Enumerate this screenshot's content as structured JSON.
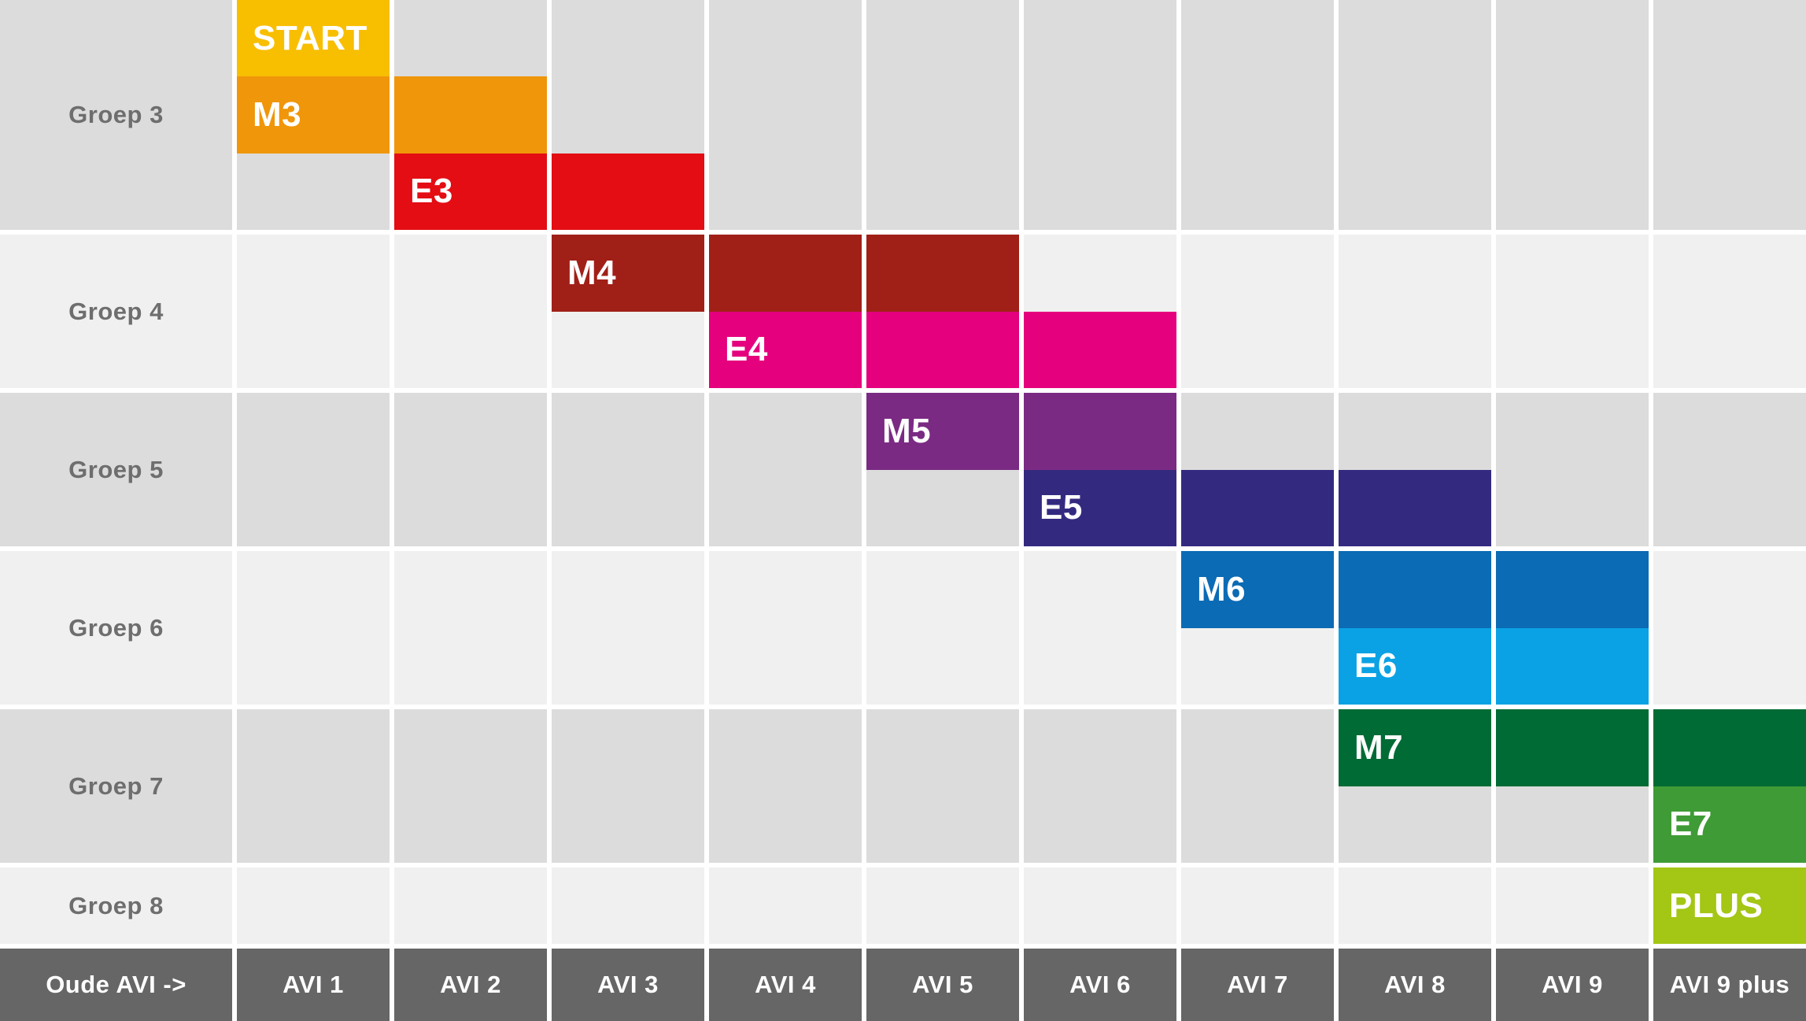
{
  "chart_data": {
    "type": "table",
    "description": "AVI reading levels per school group (gantt-style matrix). Colored blocks show which old AVI levels correspond to each new level per group.",
    "columns": [
      "Oude AVI ->",
      "AVI 1",
      "AVI 2",
      "AVI 3",
      "AVI 4",
      "AVI 5",
      "AVI 6",
      "AVI 7",
      "AVI 8",
      "AVI 9",
      "AVI 9 plus"
    ],
    "groups": [
      {
        "label": "Groep 3",
        "subrows": 3,
        "shade": "dark"
      },
      {
        "label": "Groep 4",
        "subrows": 2,
        "shade": "light"
      },
      {
        "label": "Groep 5",
        "subrows": 2,
        "shade": "dark"
      },
      {
        "label": "Groep 6",
        "subrows": 2,
        "shade": "light"
      },
      {
        "label": "Groep 7",
        "subrows": 2,
        "shade": "dark"
      },
      {
        "label": "Groep 8",
        "subrows": 1,
        "shade": "light"
      }
    ],
    "blocks": [
      {
        "label": "START",
        "group": 0,
        "subrow": 0,
        "col_start": 1,
        "col_span": 1,
        "color": "#F8BE00"
      },
      {
        "label": "M3",
        "group": 0,
        "subrow": 1,
        "col_start": 1,
        "col_span": 2,
        "color": "#F0960A"
      },
      {
        "label": "E3",
        "group": 0,
        "subrow": 2,
        "col_start": 2,
        "col_span": 2,
        "color": "#E30D13"
      },
      {
        "label": "M4",
        "group": 1,
        "subrow": 0,
        "col_start": 3,
        "col_span": 3,
        "color": "#A02018"
      },
      {
        "label": "E4",
        "group": 1,
        "subrow": 1,
        "col_start": 4,
        "col_span": 3,
        "color": "#E5007D"
      },
      {
        "label": "M5",
        "group": 2,
        "subrow": 0,
        "col_start": 5,
        "col_span": 2,
        "color": "#7B2A84"
      },
      {
        "label": "E5",
        "group": 2,
        "subrow": 1,
        "col_start": 6,
        "col_span": 3,
        "color": "#332A80"
      },
      {
        "label": "M6",
        "group": 3,
        "subrow": 0,
        "col_start": 7,
        "col_span": 3,
        "color": "#0B6BB4"
      },
      {
        "label": "E6",
        "group": 3,
        "subrow": 1,
        "col_start": 8,
        "col_span": 2,
        "color": "#0AA2E4"
      },
      {
        "label": "M7",
        "group": 4,
        "subrow": 0,
        "col_start": 8,
        "col_span": 3,
        "color": "#006B35"
      },
      {
        "label": "E7",
        "group": 4,
        "subrow": 1,
        "col_start": 10,
        "col_span": 1,
        "color": "#3F9B35"
      },
      {
        "label": "PLUS",
        "group": 5,
        "subrow": 0,
        "col_start": 10,
        "col_span": 1,
        "color": "#A4C615"
      }
    ],
    "palette": {
      "cell_dark": "#DCDCDC",
      "cell_light": "#F0F0F0",
      "header_bg": "#666666",
      "header_text": "#FFFFFF",
      "group_label_text": "#6E6E6E",
      "block_label_text": "#FFFFFF",
      "background": "#FFFFFF"
    },
    "legend_position": "none",
    "grid": "white gaps between group rows and between columns"
  }
}
